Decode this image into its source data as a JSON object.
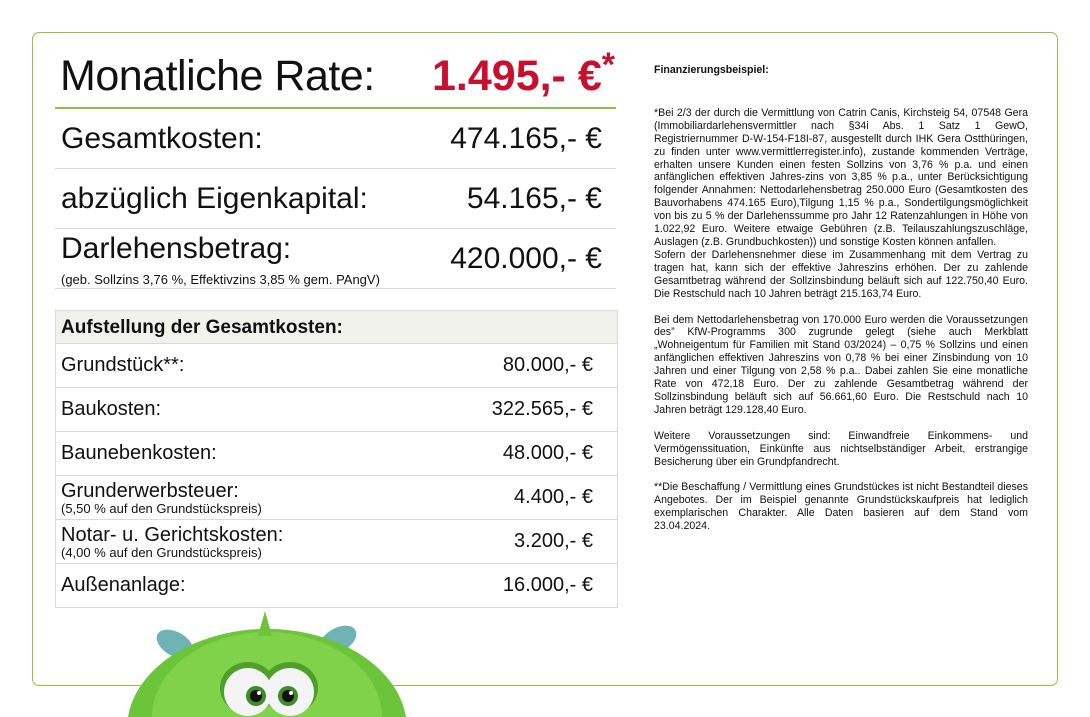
{
  "header": {
    "label": "Monatliche Rate:",
    "value": "1.495,- €",
    "star": "*"
  },
  "summary": [
    {
      "label": "Gesamtkosten:",
      "value": "474.165,- €"
    },
    {
      "label": "abzüglich Eigenkapital:",
      "value": "54.165,- €"
    },
    {
      "label": "Darlehensbetrag:",
      "sub": "(geb. Sollzins 3,76 %, Effektivzins 3,85 % gem. PAngV)",
      "value": "420.000,- €"
    }
  ],
  "table": {
    "title": "Aufstellung der Gesamtkosten:",
    "rows": [
      {
        "label": "Grundstück**:",
        "value": "80.000,- €"
      },
      {
        "label": "Baukosten:",
        "value": "322.565,- €"
      },
      {
        "label": "Baunebenkosten:",
        "value": "48.000,- €"
      },
      {
        "label": "Grunderwerbsteuer:",
        "sub": "(5,50 % auf den Grundstückspreis)",
        "value": "4.400,- €"
      },
      {
        "label": "Notar- u. Gerichtskosten:",
        "sub": "(4,00 % auf den Grundstückspreis)",
        "value": "3.200,- €"
      },
      {
        "label": "Außenanlage:",
        "value": "16.000,- €"
      }
    ]
  },
  "notes": {
    "title": "Finanzierungsbeispiel:",
    "p1": "*Bei 2/3 der durch die Vermittlung von Catrin Canis, Kirchsteig 54, 07548 Gera (Immobiliardarlehensvermittler nach §34i Abs. 1 Satz 1 GewO, Registriernummer D-W-154-F18I-87, ausgestellt durch IHK Gera Ostthüringen, zu finden unter www.vermittlerregister.info), zustande kommenden Verträge, erhalten unsere Kunden einen festen Sollzins von 3,76 % p.a. und einen anfänglichen effektiven Jahres-zins von 3,85 % p.a., unter Berücksichtigung folgender Annahmen: Nettodarlehensbetrag 250.000 Euro (Gesamtkosten des Bauvorhabens 474.165 Euro),Tilgung 1,15 % p.a., Sondertilgungsmöglichkeit von bis zu 5 % der Darlehenssumme pro Jahr 12 Ratenzahlungen in Höhe von 1.022,92 Euro. Weitere etwaige Gebühren (z.B. Teilauszahlungszuschläge, Auslagen (z.B. Grundbuchkosten)) und sonstige Kosten können anfallen.",
    "p2": "Sofern der Darlehensnehmer diese im Zusammenhang mit dem Vertrag zu tragen hat, kann sich der effektive Jahreszins erhöhen. Der zu zahlende Gesamtbetrag während der Sollzinsbindung beläuft sich auf 122.750,40 Euro. Die Restschuld nach 10 Jahren beträgt 215.163,74 Euro.",
    "p3": "Bei dem Nettodarlehensbetrag von 170.000 Euro werden die Voraussetzungen des” KfW-Programms 300 zugrunde gelegt (siehe auch Merkblatt „Wohneigentum für Familien mit Stand 03/2024) – 0,75 % Sollzins und einen anfänglichen effektiven Jahreszins von 0,78 % bei einer Zinsbindung von 10 Jahren und einer Tilgung von 2,58 % p.a.. Dabei zahlen Sie eine monatliche Rate von 472,18 Euro. Der zu zahlende Gesamtbetrag während der Sollzinsbindung beläuft sich auf 56.661,60 Euro. Die Restschuld nach 10 Jahren beträgt 129.128,40 Euro.",
    "p4": "Weitere Voraussetzungen sind: Einwandfreie Einkommens- und Vermögenssituation, Einkünfte aus nichtselbständiger Arbeit, erstrangige Besicherung über ein Grundpfandrecht.",
    "p5": "**Die Beschaffung / Vermittlung eines Grundstückes ist nicht Bestandteil dieses Angebotes. Der im Beispiel genannte Grundstückskaufpreis hat lediglich exemplarischen Charakter. Alle Daten basieren auf dem Stand vom 23.04.2024."
  },
  "colors": {
    "accent": "#8cc63f",
    "price": "#c8102e",
    "table_header": "#f1f2ec"
  },
  "mascot": "green-furry-monster-image"
}
